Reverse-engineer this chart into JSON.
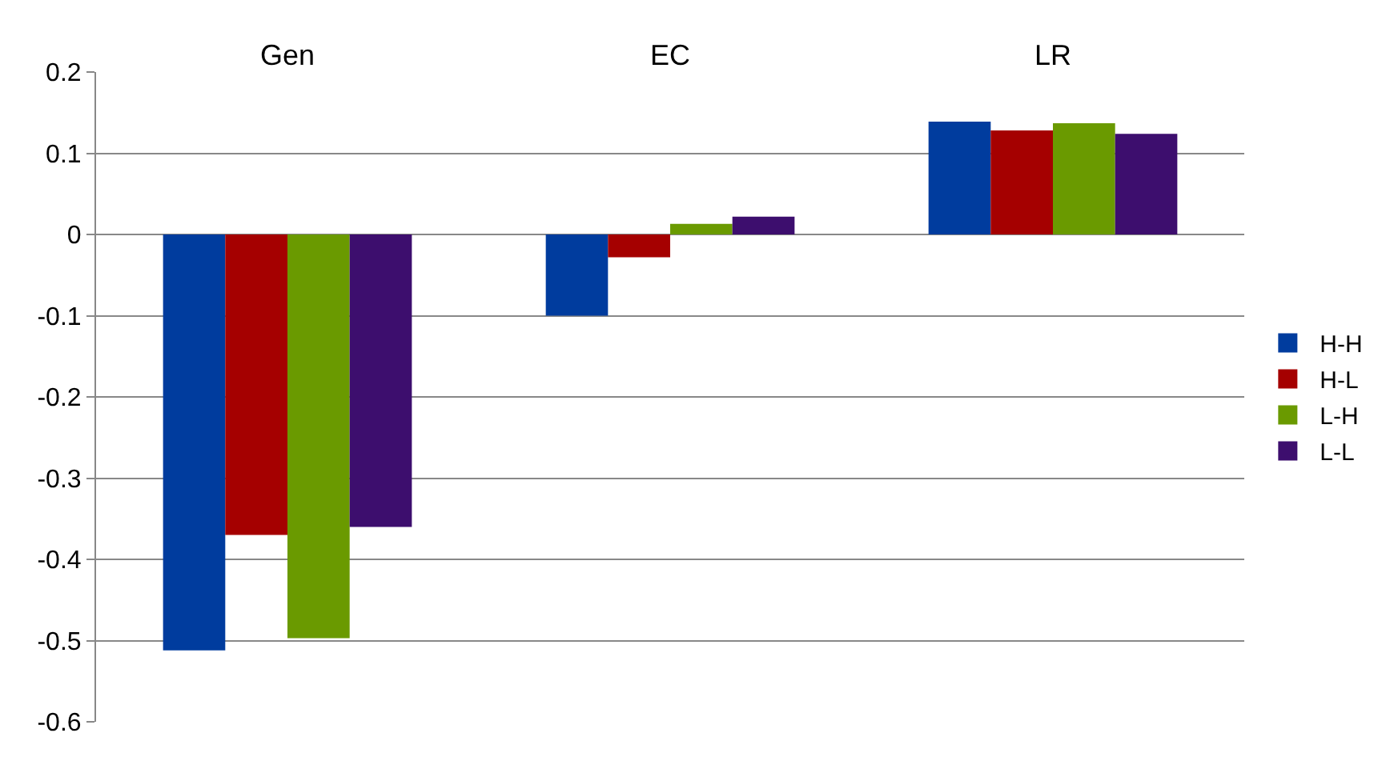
{
  "chart_data": {
    "type": "bar",
    "categories": [
      "Gen",
      "EC",
      "LR"
    ],
    "series": [
      {
        "name": "H-H",
        "color": "#003c9e",
        "values": [
          -0.512,
          -0.1,
          0.139
        ]
      },
      {
        "name": "H-L",
        "color": "#a50000",
        "values": [
          -0.37,
          -0.028,
          0.128
        ]
      },
      {
        "name": "L-H",
        "color": "#6a9a00",
        "values": [
          -0.497,
          0.013,
          0.137
        ]
      },
      {
        "name": "L-L",
        "color": "#3d0e6e",
        "values": [
          -0.36,
          0.022,
          0.124
        ]
      }
    ],
    "ylim": [
      -0.6,
      0.2
    ],
    "yticks": [
      -0.6,
      -0.5,
      -0.4,
      -0.3,
      -0.2,
      -0.1,
      0,
      0.1,
      0.2
    ],
    "grid": "y",
    "legend": "right"
  }
}
